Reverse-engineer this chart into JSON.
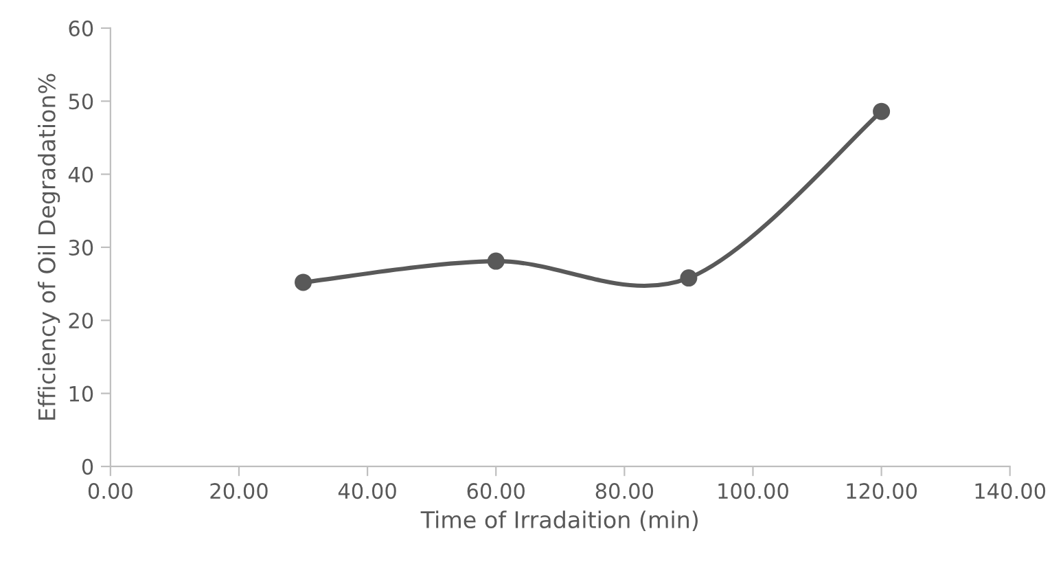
{
  "chart_data": {
    "type": "line",
    "xlabel": "Time of Irradaition (min)",
    "ylabel": "Efficiency of Oil Degradation%",
    "x": [
      30,
      60,
      90,
      120
    ],
    "series": [
      {
        "color": "#595959",
        "values": [
          25.2,
          28.1,
          25.8,
          48.6
        ]
      }
    ],
    "xlim": [
      0,
      140
    ],
    "xticks": [
      {
        "value": 0,
        "label": "0.00"
      },
      {
        "value": 20,
        "label": "20.00"
      },
      {
        "value": 40,
        "label": "40.00"
      },
      {
        "value": 60,
        "label": "60.00"
      },
      {
        "value": 80,
        "label": "80.00"
      },
      {
        "value": 100,
        "label": "100.00"
      },
      {
        "value": 120,
        "label": "120.00"
      },
      {
        "value": 140,
        "label": "140.00"
      }
    ],
    "ylim": [
      0,
      60
    ],
    "yticks": [
      0,
      10,
      20,
      30,
      40,
      50,
      60
    ],
    "grid": false,
    "marker": "circle",
    "line_style": "solid"
  }
}
